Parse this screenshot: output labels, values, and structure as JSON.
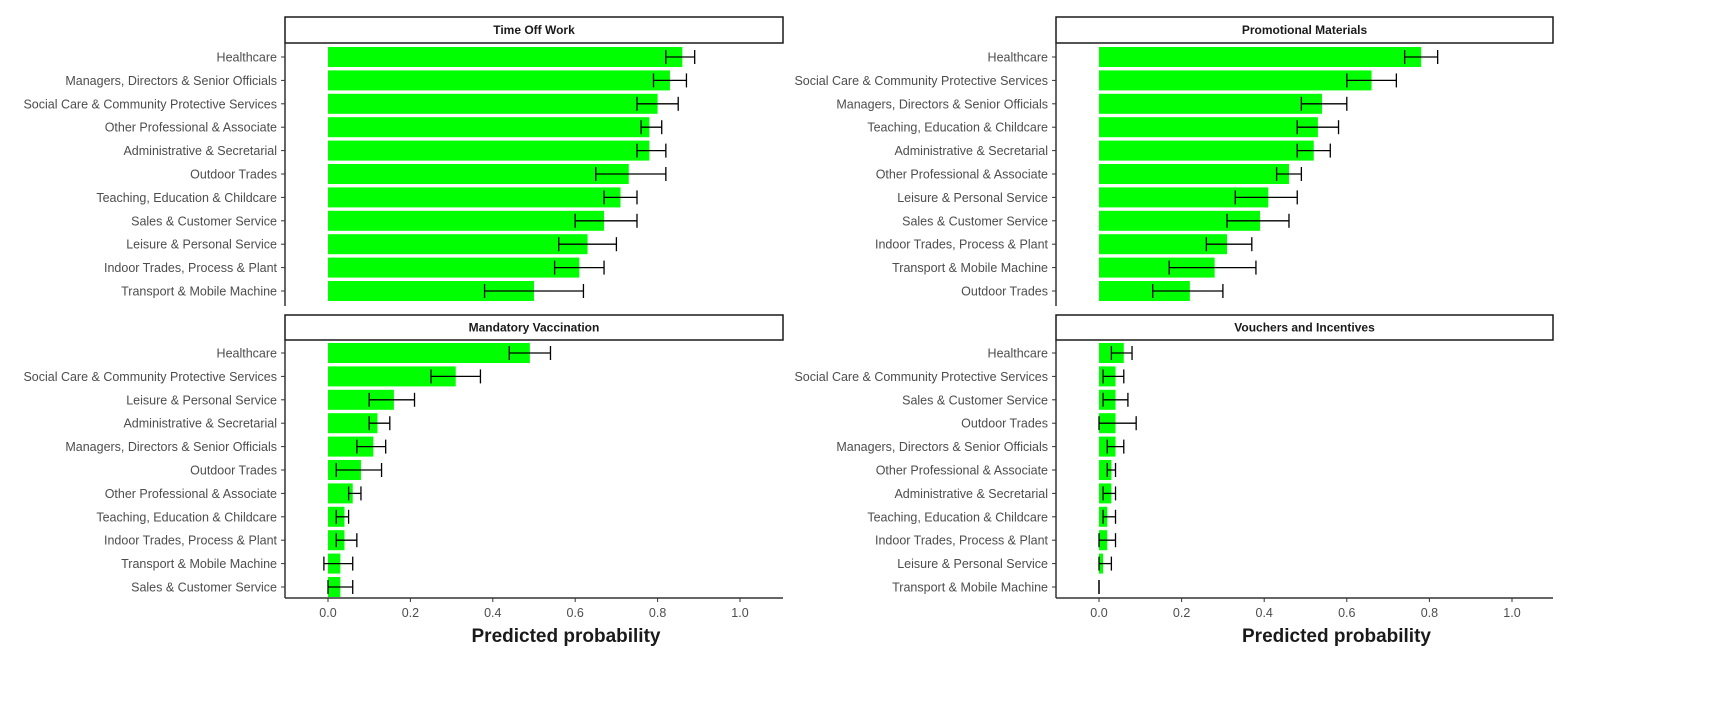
{
  "chart_data": {
    "type": "bar",
    "orientation": "horizontal",
    "xlabel": "Predicted probability",
    "xlim": [
      -0.1,
      1.1
    ],
    "xticks": [
      "0.0",
      "0.2",
      "0.4",
      "0.6",
      "0.8",
      "1.0"
    ],
    "bar_color": "#00ff00",
    "panels": [
      {
        "title": "Time Off Work",
        "categories": [
          "Healthcare",
          "Managers, Directors & Senior Officials",
          "Social Care & Community Protective Services",
          "Other Professional & Associate",
          "Administrative & Secretarial",
          "Outdoor Trades",
          "Teaching, Education & Childcare",
          "Sales & Customer Service",
          "Leisure & Personal Service",
          "Indoor Trades, Process & Plant",
          "Transport & Mobile Machine"
        ],
        "values": [
          0.86,
          0.83,
          0.8,
          0.78,
          0.78,
          0.73,
          0.71,
          0.67,
          0.63,
          0.61,
          0.5
        ],
        "lower": [
          0.82,
          0.79,
          0.75,
          0.76,
          0.75,
          0.65,
          0.67,
          0.6,
          0.56,
          0.55,
          0.38
        ],
        "upper": [
          0.89,
          0.87,
          0.85,
          0.81,
          0.82,
          0.82,
          0.75,
          0.75,
          0.7,
          0.67,
          0.62
        ]
      },
      {
        "title": "Promotional Materials",
        "categories": [
          "Healthcare",
          "Social Care & Community Protective Services",
          "Managers, Directors & Senior Officials",
          "Teaching, Education & Childcare",
          "Administrative & Secretarial",
          "Other Professional & Associate",
          "Leisure & Personal Service",
          "Sales & Customer Service",
          "Indoor Trades, Process & Plant",
          "Transport & Mobile Machine",
          "Outdoor Trades"
        ],
        "values": [
          0.78,
          0.66,
          0.54,
          0.53,
          0.52,
          0.46,
          0.41,
          0.39,
          0.31,
          0.28,
          0.22
        ],
        "lower": [
          0.74,
          0.6,
          0.49,
          0.48,
          0.48,
          0.43,
          0.33,
          0.31,
          0.26,
          0.17,
          0.13
        ],
        "upper": [
          0.82,
          0.72,
          0.6,
          0.58,
          0.56,
          0.49,
          0.48,
          0.46,
          0.37,
          0.38,
          0.3
        ]
      },
      {
        "title": "Mandatory Vaccination",
        "categories": [
          "Healthcare",
          "Social Care & Community Protective Services",
          "Leisure & Personal Service",
          "Administrative & Secretarial",
          "Managers, Directors & Senior Officials",
          "Outdoor Trades",
          "Other Professional & Associate",
          "Teaching, Education & Childcare",
          "Indoor Trades, Process & Plant",
          "Transport & Mobile Machine",
          "Sales & Customer Service"
        ],
        "values": [
          0.49,
          0.31,
          0.16,
          0.12,
          0.11,
          0.08,
          0.06,
          0.04,
          0.04,
          0.03,
          0.03
        ],
        "lower": [
          0.44,
          0.25,
          0.1,
          0.1,
          0.07,
          0.02,
          0.05,
          0.02,
          0.02,
          -0.01,
          0.0
        ],
        "upper": [
          0.54,
          0.37,
          0.21,
          0.15,
          0.14,
          0.13,
          0.08,
          0.05,
          0.07,
          0.06,
          0.06
        ]
      },
      {
        "title": "Vouchers and Incentives",
        "categories": [
          "Healthcare",
          "Social Care & Community Protective Services",
          "Sales & Customer Service",
          "Outdoor Trades",
          "Managers, Directors & Senior Officials",
          "Other Professional & Associate",
          "Administrative & Secretarial",
          "Teaching, Education & Childcare",
          "Indoor Trades, Process & Plant",
          "Leisure & Personal Service",
          "Transport & Mobile Machine"
        ],
        "values": [
          0.06,
          0.04,
          0.04,
          0.04,
          0.04,
          0.03,
          0.03,
          0.02,
          0.02,
          0.01,
          0.0
        ],
        "lower": [
          0.03,
          0.01,
          0.01,
          0.0,
          0.02,
          0.02,
          0.01,
          0.01,
          0.0,
          0.0,
          0.0
        ],
        "upper": [
          0.08,
          0.06,
          0.07,
          0.09,
          0.06,
          0.04,
          0.04,
          0.04,
          0.04,
          0.03,
          0.0
        ]
      }
    ]
  }
}
